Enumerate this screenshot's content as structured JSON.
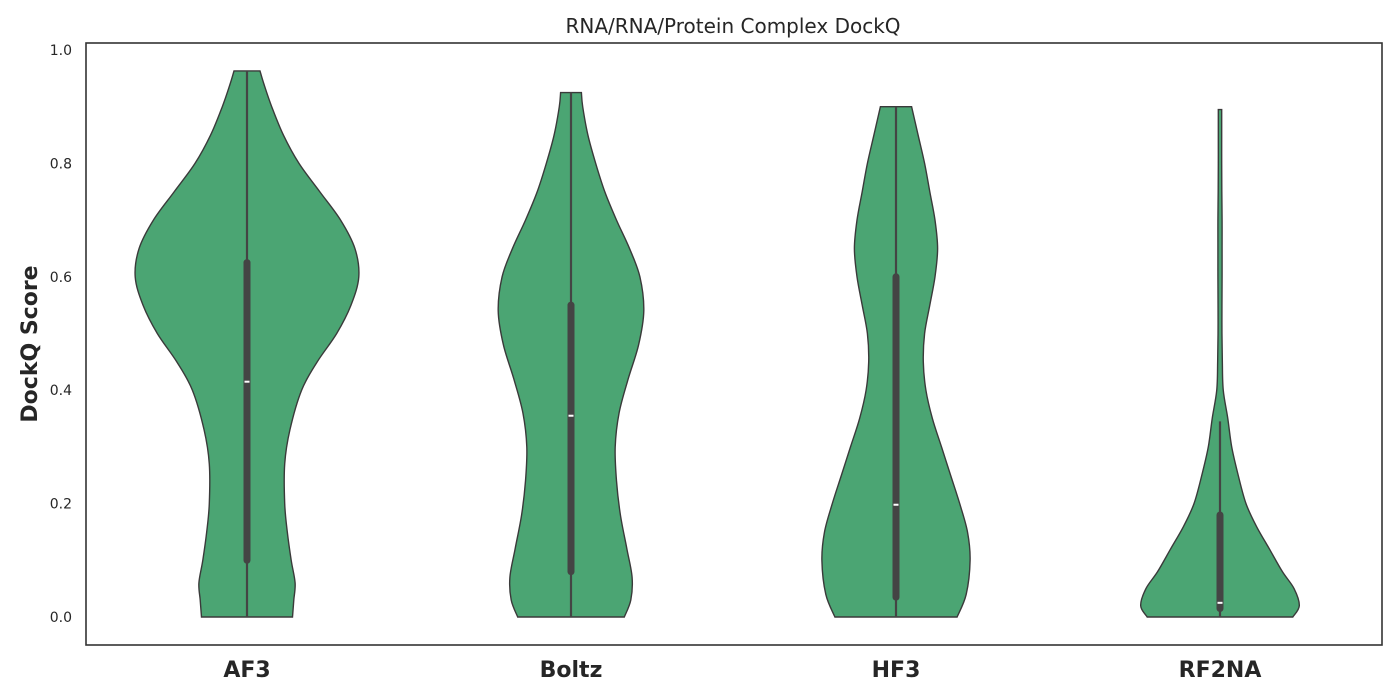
{
  "chart_data": {
    "type": "violin",
    "title": "RNA/RNA/Protein Complex DockQ",
    "xlabel": "",
    "ylabel": "DockQ Score",
    "ylim": [
      -0.05,
      1.02
    ],
    "yticks": [
      "0.0",
      "0.2",
      "0.4",
      "0.6",
      "0.8",
      "1.0"
    ],
    "grid": false,
    "fill_color": "#4ba573",
    "edge_color": "#3a3a3a",
    "box_color": "#444444",
    "categories": [
      "AF3",
      "Boltz",
      "HF3",
      "RF2NA"
    ],
    "violins": [
      {
        "category": "AF3",
        "min": 0.0,
        "q1": 0.1,
        "median": 0.415,
        "q3": 0.625,
        "max": 0.963,
        "whisker_low": 0.0,
        "whisker_high": 0.963,
        "density_profile": [
          [
            0.0,
            0.35
          ],
          [
            0.03,
            0.36
          ],
          [
            0.06,
            0.37
          ],
          [
            0.1,
            0.34
          ],
          [
            0.15,
            0.31
          ],
          [
            0.2,
            0.29
          ],
          [
            0.27,
            0.29
          ],
          [
            0.33,
            0.33
          ],
          [
            0.4,
            0.42
          ],
          [
            0.45,
            0.54
          ],
          [
            0.5,
            0.69
          ],
          [
            0.55,
            0.8
          ],
          [
            0.6,
            0.86
          ],
          [
            0.65,
            0.83
          ],
          [
            0.7,
            0.72
          ],
          [
            0.75,
            0.56
          ],
          [
            0.8,
            0.4
          ],
          [
            0.85,
            0.28
          ],
          [
            0.9,
            0.19
          ],
          [
            0.94,
            0.13
          ],
          [
            0.963,
            0.1
          ]
        ]
      },
      {
        "category": "Boltz",
        "min": 0.0,
        "q1": 0.08,
        "median": 0.355,
        "q3": 0.55,
        "max": 0.925,
        "whisker_low": 0.0,
        "whisker_high": 0.925,
        "density_profile": [
          [
            0.0,
            0.41
          ],
          [
            0.03,
            0.46
          ],
          [
            0.07,
            0.47
          ],
          [
            0.12,
            0.43
          ],
          [
            0.18,
            0.38
          ],
          [
            0.24,
            0.35
          ],
          [
            0.3,
            0.34
          ],
          [
            0.36,
            0.37
          ],
          [
            0.42,
            0.44
          ],
          [
            0.48,
            0.52
          ],
          [
            0.54,
            0.56
          ],
          [
            0.6,
            0.53
          ],
          [
            0.65,
            0.45
          ],
          [
            0.7,
            0.35
          ],
          [
            0.75,
            0.26
          ],
          [
            0.8,
            0.19
          ],
          [
            0.85,
            0.13
          ],
          [
            0.9,
            0.09
          ],
          [
            0.925,
            0.08
          ]
        ]
      },
      {
        "category": "HF3",
        "min": 0.0,
        "q1": 0.035,
        "median": 0.198,
        "q3": 0.6,
        "max": 0.9,
        "whisker_low": 0.0,
        "whisker_high": 0.9,
        "density_profile": [
          [
            0.0,
            0.47
          ],
          [
            0.04,
            0.54
          ],
          [
            0.1,
            0.57
          ],
          [
            0.15,
            0.55
          ],
          [
            0.2,
            0.49
          ],
          [
            0.25,
            0.42
          ],
          [
            0.3,
            0.35
          ],
          [
            0.35,
            0.28
          ],
          [
            0.4,
            0.23
          ],
          [
            0.45,
            0.21
          ],
          [
            0.5,
            0.22
          ],
          [
            0.55,
            0.26
          ],
          [
            0.6,
            0.3
          ],
          [
            0.65,
            0.32
          ],
          [
            0.7,
            0.3
          ],
          [
            0.75,
            0.26
          ],
          [
            0.8,
            0.22
          ],
          [
            0.85,
            0.17
          ],
          [
            0.9,
            0.12
          ]
        ]
      },
      {
        "category": "RF2NA",
        "min": 0.0,
        "q1": 0.015,
        "median": 0.025,
        "q3": 0.18,
        "max": 0.895,
        "whisker_low": 0.0,
        "whisker_high": 0.345,
        "density_profile": [
          [
            0.0,
            0.56
          ],
          [
            0.02,
            0.61
          ],
          [
            0.05,
            0.57
          ],
          [
            0.08,
            0.48
          ],
          [
            0.12,
            0.38
          ],
          [
            0.16,
            0.28
          ],
          [
            0.2,
            0.2
          ],
          [
            0.25,
            0.14
          ],
          [
            0.3,
            0.09
          ],
          [
            0.35,
            0.06
          ],
          [
            0.4,
            0.025
          ],
          [
            0.45,
            0.018
          ],
          [
            0.5,
            0.015
          ],
          [
            0.55,
            0.015
          ],
          [
            0.6,
            0.016
          ],
          [
            0.65,
            0.016
          ],
          [
            0.7,
            0.016
          ],
          [
            0.75,
            0.014
          ],
          [
            0.8,
            0.013
          ],
          [
            0.85,
            0.013
          ],
          [
            0.895,
            0.013
          ]
        ]
      }
    ]
  }
}
